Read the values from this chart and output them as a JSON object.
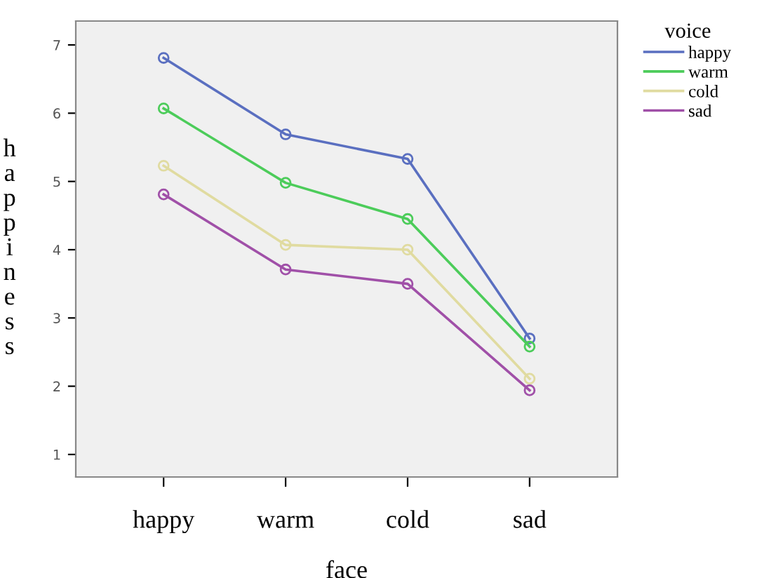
{
  "chart_data": {
    "type": "line",
    "xlabel": "face",
    "ylabel": "happiness",
    "legend_title": "voice",
    "categories": [
      "happy",
      "warm",
      "cold",
      "sad"
    ],
    "series": [
      {
        "name": "happy",
        "color": "#5a6fc0",
        "values": [
          6.81,
          5.69,
          5.33,
          2.7
        ]
      },
      {
        "name": "warm",
        "color": "#4ccc5a",
        "values": [
          6.07,
          4.98,
          4.45,
          2.58
        ]
      },
      {
        "name": "cold",
        "color": "#e0dba0",
        "values": [
          5.23,
          4.07,
          4.0,
          2.11
        ]
      },
      {
        "name": "sad",
        "color": "#a050a8",
        "values": [
          4.81,
          3.71,
          3.5,
          1.94
        ]
      }
    ],
    "ylim": [
      0.67,
      7.35
    ],
    "yticks": [
      1,
      2,
      3,
      4,
      5,
      6,
      7
    ],
    "grid": false,
    "legend": "top right",
    "marker": "circle",
    "line_style": "solid"
  }
}
